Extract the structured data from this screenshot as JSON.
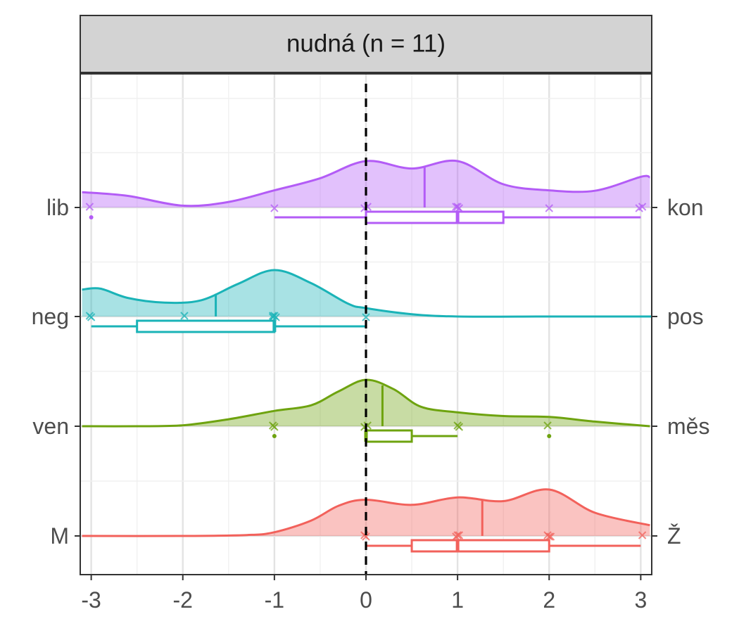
{
  "chart_data": {
    "type": "ridgeline",
    "title": "nudná (n = 11)",
    "xlim": [
      -3.12,
      3.12
    ],
    "xticks": [
      -3,
      -2,
      -1,
      0,
      1,
      2,
      3
    ],
    "xtick_labels": [
      "-3",
      "-2",
      "-1",
      "0",
      "1",
      "2",
      "3"
    ],
    "reference_line_x": 0,
    "xlabel": "",
    "ylabel": "",
    "series": [
      {
        "left_label": "lib",
        "right_label": "kon",
        "color": "#b35cf6",
        "density_x": [
          -3.1,
          -2.6,
          -2.0,
          -1.5,
          -1.0,
          -0.5,
          0.0,
          0.5,
          1.0,
          1.5,
          2.0,
          2.5,
          3.0,
          3.1
        ],
        "density_y": [
          0.33,
          0.25,
          0.04,
          0.12,
          0.37,
          0.63,
          1.0,
          0.84,
          1.0,
          0.5,
          0.37,
          0.36,
          0.66,
          0.65
        ],
        "mean": 0.64,
        "points": [
          -3,
          -1,
          0,
          0,
          1,
          1,
          1,
          2,
          3,
          3
        ],
        "outliers": [
          -3
        ],
        "box": {
          "lower_whisker": -1,
          "q1": 0,
          "median": 1,
          "q3": 1.5,
          "upper_whisker": 3
        }
      },
      {
        "left_label": "neg",
        "right_label": "pos",
        "color": "#1ab3b7",
        "density_x": [
          -3.1,
          -2.9,
          -2.6,
          -2.2,
          -1.8,
          -1.4,
          -1.0,
          -0.6,
          -0.2,
          0.0,
          0.5,
          1.0,
          2.0,
          3.0,
          3.1
        ],
        "density_y": [
          0.58,
          0.6,
          0.4,
          0.3,
          0.35,
          0.7,
          1.0,
          0.72,
          0.28,
          0.18,
          0.05,
          0.0,
          0.0,
          0.0,
          0.0
        ],
        "mean": -1.64,
        "points": [
          -3,
          -3,
          -2,
          -1,
          -1,
          -1,
          -1,
          0
        ],
        "outliers": [],
        "box": {
          "lower_whisker": -3,
          "q1": -2.5,
          "median": -1,
          "q3": -1,
          "upper_whisker": 0
        }
      },
      {
        "left_label": "ven",
        "right_label": "měs",
        "color": "#6ea30f",
        "density_x": [
          -3.1,
          -2.5,
          -2.0,
          -1.5,
          -1.0,
          -0.6,
          -0.3,
          0.0,
          0.3,
          0.6,
          1.0,
          1.5,
          2.0,
          2.5,
          3.1
        ],
        "density_y": [
          0.0,
          0.0,
          0.02,
          0.15,
          0.33,
          0.45,
          0.75,
          1.0,
          0.8,
          0.42,
          0.3,
          0.22,
          0.2,
          0.1,
          0.0
        ],
        "mean": 0.18,
        "points": [
          -1,
          -1,
          0,
          0,
          1,
          1,
          2
        ],
        "outliers": [
          -1,
          2
        ],
        "box": {
          "lower_whisker": 0,
          "q1": 0,
          "median": 0,
          "q3": 0.5,
          "upper_whisker": 1
        }
      },
      {
        "left_label": "M",
        "right_label": "Ž",
        "color": "#f2615b",
        "density_x": [
          -3.1,
          -2.0,
          -1.3,
          -1.0,
          -0.6,
          -0.3,
          0.0,
          0.5,
          1.0,
          1.5,
          2.0,
          2.5,
          3.1
        ],
        "density_y": [
          0.0,
          0.0,
          0.02,
          0.08,
          0.33,
          0.65,
          0.78,
          0.67,
          0.83,
          0.75,
          1.0,
          0.5,
          0.23
        ],
        "mean": 1.27,
        "points": [
          0,
          0,
          1,
          1,
          1,
          2,
          2,
          2,
          3
        ],
        "outliers": [],
        "box": {
          "lower_whisker": 0,
          "q1": 0.5,
          "median": 1,
          "q3": 2,
          "upper_whisker": 3
        }
      }
    ]
  }
}
